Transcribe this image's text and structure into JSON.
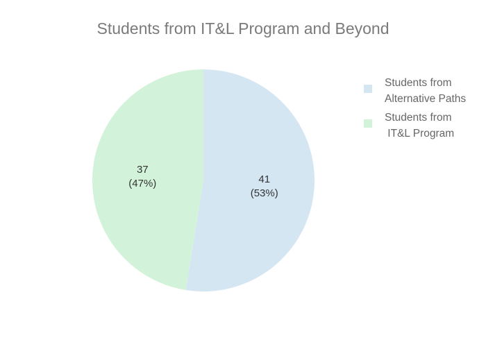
{
  "title": "Students from IT&L Program and Beyond",
  "chart_data": {
    "type": "pie",
    "title": "Students from IT&L Program and Beyond",
    "slices": [
      {
        "label": "Students from\nAlternative Paths",
        "value": 41,
        "percent_label": "(53%)",
        "color": "#d5e6f3"
      },
      {
        "label": "Students from\n IT&L Program",
        "value": 37,
        "percent_label": "(47%)",
        "color": "#d2f3d9"
      }
    ],
    "legend_position": "top-right",
    "start_angle": "12 o'clock",
    "direction": "clockwise"
  },
  "legend": {
    "items": [
      {
        "label": "Students from\nAlternative Paths",
        "color": "#d5e6f3"
      },
      {
        "label": "Students from\n IT&L Program",
        "color": "#d2f3d9"
      }
    ]
  }
}
